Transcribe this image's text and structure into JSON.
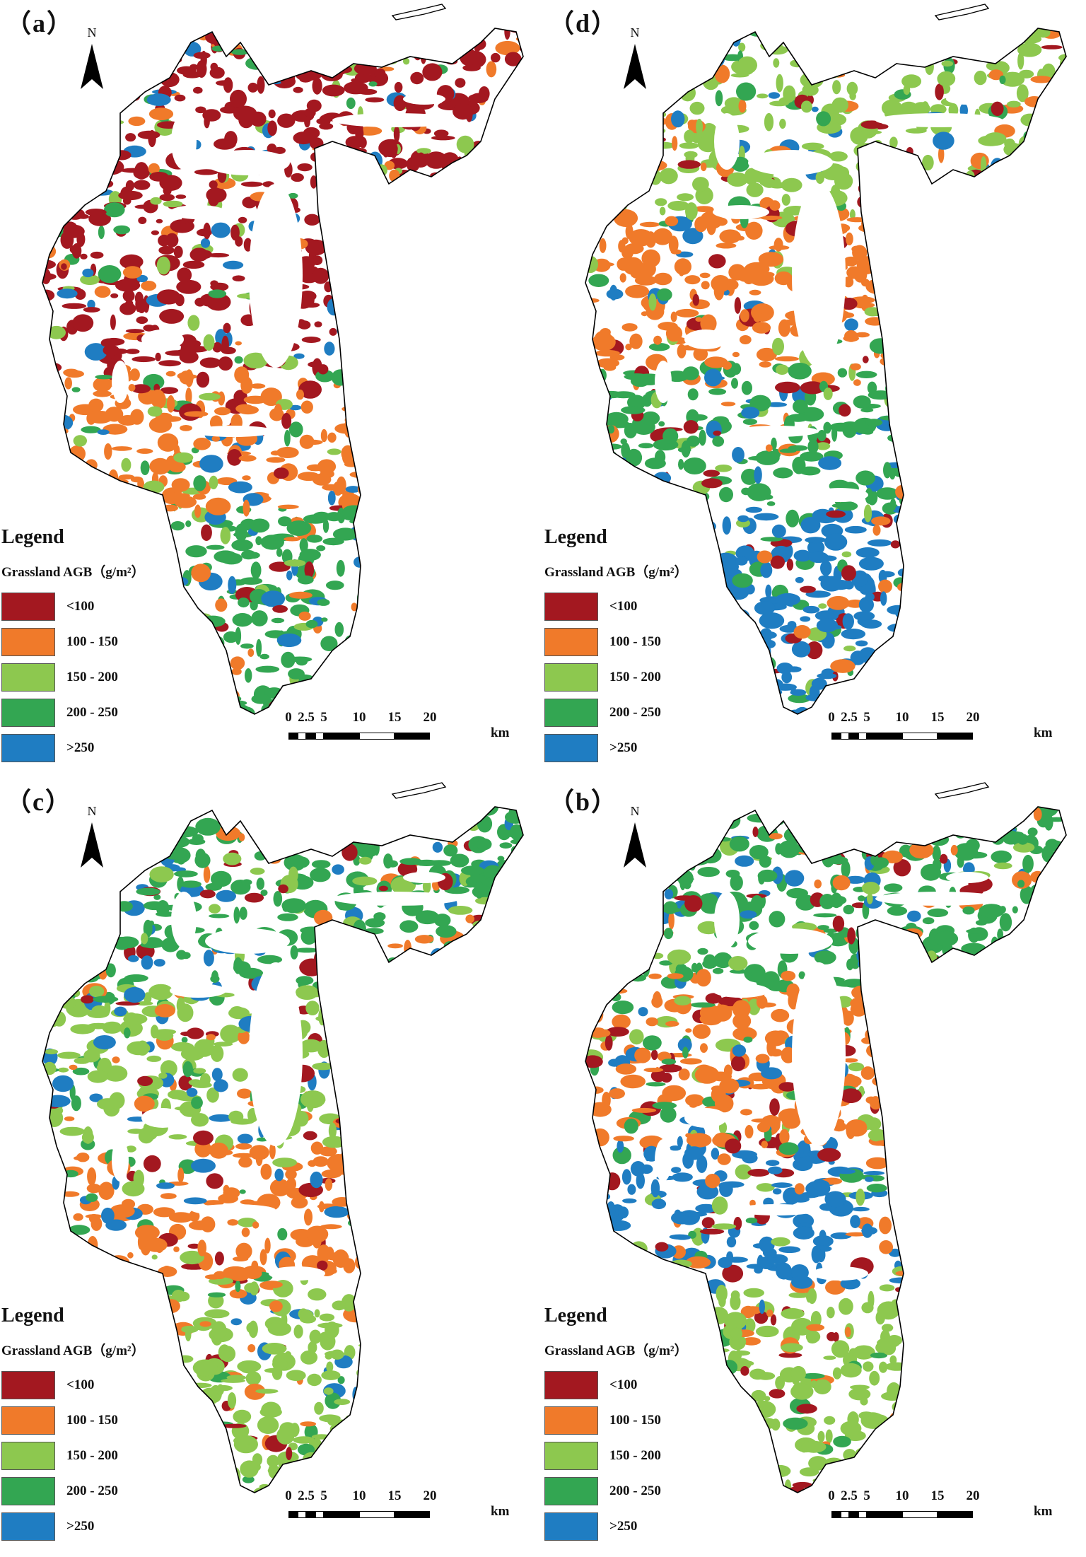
{
  "colors": {
    "lt100": "#a31820",
    "100_150": "#f07a2a",
    "150_200": "#8dc84f",
    "200_250": "#33a652",
    "gt250": "#1f7dc2",
    "outline": "#000000"
  },
  "panels": [
    {
      "label": "（a）",
      "north": "N",
      "legend": {
        "title": "Legend",
        "subtitle": "Grassland AGB（g/m²）",
        "items": [
          {
            "label": "<100",
            "color": "#a31820"
          },
          {
            "label": "100 - 150",
            "color": "#f07a2a"
          },
          {
            "label": "150 - 200",
            "color": "#8dc84f"
          },
          {
            "label": "200 - 250",
            "color": "#33a652"
          },
          {
            "label": ">250",
            "color": "#1f7dc2"
          }
        ]
      },
      "scale": {
        "ticks": [
          "0",
          "2.5",
          "5",
          "10",
          "15",
          "20"
        ],
        "unit": "km"
      },
      "dominant": [
        "#a31820",
        "#a31820",
        "#f07a2a",
        "#33a652"
      ]
    },
    {
      "label": "（d）",
      "north": "N",
      "legend": {
        "title": "Legend",
        "subtitle": "Grassland AGB（g/m²）",
        "items": [
          {
            "label": "<100",
            "color": "#a31820"
          },
          {
            "label": "100 - 150",
            "color": "#f07a2a"
          },
          {
            "label": "150 - 200",
            "color": "#8dc84f"
          },
          {
            "label": "200 - 250",
            "color": "#33a652"
          },
          {
            "label": ">250",
            "color": "#1f7dc2"
          }
        ]
      },
      "scale": {
        "ticks": [
          "0",
          "2.5",
          "5",
          "10",
          "15",
          "20"
        ],
        "unit": "km"
      },
      "dominant": [
        "#8dc84f",
        "#f07a2a",
        "#33a652",
        "#1f7dc2"
      ]
    },
    {
      "label": "（c）",
      "north": "N",
      "legend": {
        "title": "Legend",
        "subtitle": "Grassland AGB（g/m²）",
        "items": [
          {
            "label": "<100",
            "color": "#a31820"
          },
          {
            "label": "100 - 150",
            "color": "#f07a2a"
          },
          {
            "label": "150 - 200",
            "color": "#8dc84f"
          },
          {
            "label": "200 - 250",
            "color": "#33a652"
          },
          {
            "label": ">250",
            "color": "#1f7dc2"
          }
        ]
      },
      "scale": {
        "ticks": [
          "0",
          "2.5",
          "5",
          "10",
          "15",
          "20"
        ],
        "unit": "km"
      },
      "dominant": [
        "#33a652",
        "#8dc84f",
        "#f07a2a",
        "#8dc84f"
      ]
    },
    {
      "label": "（b）",
      "north": "N",
      "legend": {
        "title": "Legend",
        "subtitle": "Grassland AGB（g/m²）",
        "items": [
          {
            "label": "<100",
            "color": "#a31820"
          },
          {
            "label": "100 - 150",
            "color": "#f07a2a"
          },
          {
            "label": "150 - 200",
            "color": "#8dc84f"
          },
          {
            "label": "200 - 250",
            "color": "#33a652"
          },
          {
            "label": ">250",
            "color": "#1f7dc2"
          }
        ]
      },
      "scale": {
        "ticks": [
          "0",
          "2.5",
          "5",
          "10",
          "15",
          "20"
        ],
        "unit": "km"
      },
      "dominant": [
        "#33a652",
        "#f07a2a",
        "#1f7dc2",
        "#8dc84f"
      ]
    }
  ]
}
